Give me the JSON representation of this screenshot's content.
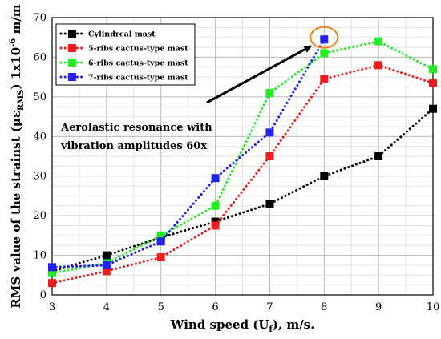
{
  "chart_data": {
    "type": "line",
    "xlabel": "Wind speed (U",
    "xlabel_sub": "f",
    "xlabel_tail": "), m/s.",
    "ylabel": "RMS value of the strainst (με",
    "ylabel_sub": "RMS",
    "ylabel_mid": ") 1x10",
    "ylabel_sup": "-6",
    "ylabel_tail": " m/m",
    "x": [
      3,
      4,
      5,
      6,
      7,
      8,
      9,
      10
    ],
    "xlim": [
      3,
      10
    ],
    "ylim": [
      0,
      70
    ],
    "xticks": [
      "3",
      "4",
      "5",
      "6",
      "7",
      "8",
      "9",
      "10"
    ],
    "yticks": [
      "0",
      "10",
      "20",
      "30",
      "40",
      "50",
      "60",
      "70"
    ],
    "grid": true,
    "legend_position": "top-left",
    "series": [
      {
        "name": "Cylindrcal mast",
        "color": "#000000",
        "values": [
          6,
          10,
          14.5,
          18.5,
          23,
          30,
          35,
          47
        ]
      },
      {
        "name": "5-ribs cactus-type mast",
        "color": "#ee1c1c",
        "values": [
          3,
          6,
          9.5,
          17.5,
          35,
          54.5,
          58,
          53.5
        ]
      },
      {
        "name": "6-ribs cactus-type mast",
        "color": "#22ee22",
        "values": [
          5.5,
          8,
          15,
          22.5,
          51,
          61,
          64,
          57
        ]
      },
      {
        "name": "7-ribs cactus-type mast",
        "color": "#2222ee",
        "values": [
          7,
          7.5,
          13.5,
          29.5,
          41,
          64.5,
          null,
          null
        ]
      }
    ],
    "annotation": {
      "lines": [
        "Aerolastic resonance with",
        "vibration amplitudes 60x"
      ],
      "arrow_to": {
        "x": 7.9,
        "y": 64
      },
      "highlight_circle": {
        "x": 8,
        "y": 65,
        "color": "#f08020"
      }
    }
  }
}
